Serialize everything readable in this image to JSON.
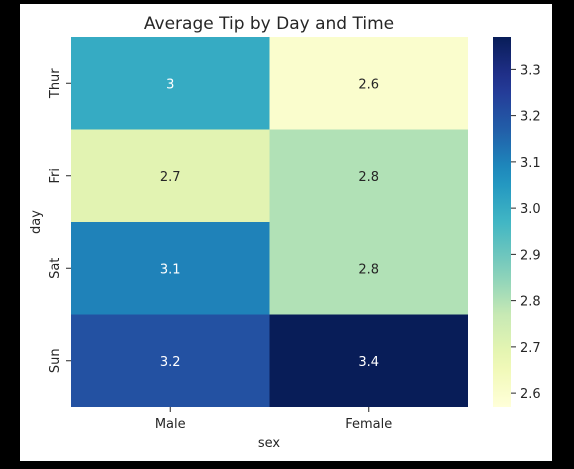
{
  "chart_data": {
    "type": "heatmap",
    "title": "Average Tip by Day and Time",
    "xlabel": "sex",
    "ylabel": "day",
    "x_categories": [
      "Male",
      "Female"
    ],
    "y_categories": [
      "Thur",
      "Fri",
      "Sat",
      "Sun"
    ],
    "values": [
      [
        3.0,
        2.6
      ],
      [
        2.7,
        2.8
      ],
      [
        3.1,
        2.8
      ],
      [
        3.2,
        3.4
      ]
    ],
    "cell_labels": [
      [
        "3",
        "2.6"
      ],
      [
        "2.7",
        "2.8"
      ],
      [
        "3.1",
        "2.8"
      ],
      [
        "3.2",
        "3.4"
      ]
    ],
    "colormap": "YlGnBu",
    "colorbar": {
      "range": [
        2.57,
        3.37
      ],
      "ticks": [
        2.6,
        2.7,
        2.8,
        2.9,
        3.0,
        3.1,
        3.2,
        3.3
      ],
      "tick_labels": [
        "2.6",
        "2.7",
        "2.8",
        "2.9",
        "3.0",
        "3.1",
        "3.2",
        "3.3"
      ]
    },
    "legend": "colorbar-right",
    "grid": false
  }
}
